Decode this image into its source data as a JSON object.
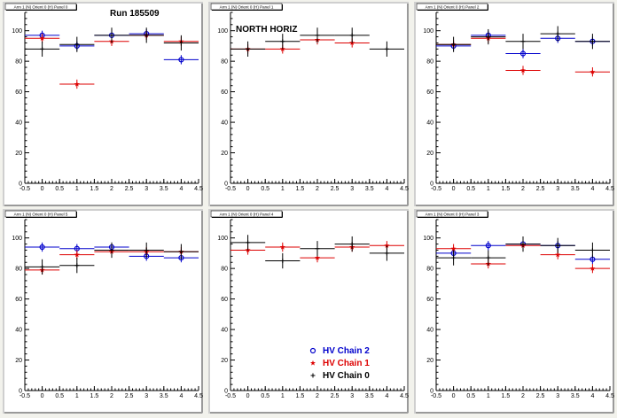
{
  "canvas": {
    "background": "#f2f2ec",
    "pad_color": "#ffffff",
    "frame_color": "#cfcfcf"
  },
  "series_styles": {
    "HV Chain 2": {
      "color": "#0000cc",
      "marker": "open-circle"
    },
    "HV Chain 1": {
      "color": "#dd0000",
      "marker": "star"
    },
    "HV Chain 0": {
      "color": "#000000",
      "marker": "cross"
    }
  },
  "legend": {
    "panel_index": 4,
    "entries": [
      {
        "name": "HV Chain 2",
        "color": "#0000cc",
        "marker": "open-circle"
      },
      {
        "name": "HV Chain 1",
        "color": "#dd0000",
        "marker": "star"
      },
      {
        "name": "HV Chain 0",
        "color": "#000000",
        "marker": "cross"
      }
    ]
  },
  "chart_data": [
    {
      "type": "scatter",
      "title": "Arm 1 (N) Orient 0 (H) Panel 0",
      "annotation": "Run 185509",
      "xlim": [
        -0.5,
        4.5
      ],
      "ylim": [
        0,
        112
      ],
      "xticks": [
        "-0.5",
        "0",
        "0.5",
        "1",
        "1.5",
        "2",
        "2.5",
        "3",
        "3.5",
        "4",
        "4.5"
      ],
      "yticks": [
        "0",
        "20",
        "40",
        "60",
        "80",
        "100"
      ],
      "series": [
        {
          "name": "HV Chain 2",
          "x": [
            0,
            1,
            2,
            3,
            4
          ],
          "y": [
            97,
            90,
            97,
            98,
            81
          ],
          "xerr": 0.5,
          "yerr": 3
        },
        {
          "name": "HV Chain 1",
          "x": [
            0,
            1,
            2,
            3,
            4
          ],
          "y": [
            95,
            65,
            93,
            97,
            93
          ],
          "xerr": 0.5,
          "yerr": 3
        },
        {
          "name": "HV Chain 0",
          "x": [
            0,
            1,
            2,
            3,
            4
          ],
          "y": [
            88,
            91,
            97,
            97,
            92
          ],
          "xerr": 0.5,
          "yerr": 5
        }
      ]
    },
    {
      "type": "scatter",
      "title": "Arm 1 (N) Orient 0 (H) Panel 1",
      "annotation": "NORTH HORIZ",
      "xlim": [
        -0.5,
        4.5
      ],
      "ylim": [
        0,
        112
      ],
      "xticks": [
        "-0.5",
        "0",
        "0.5",
        "1",
        "1.5",
        "2",
        "2.5",
        "3",
        "3.5",
        "4",
        "4.5"
      ],
      "yticks": [
        "0",
        "20",
        "40",
        "60",
        "80",
        "100"
      ],
      "series": [
        {
          "name": "HV Chain 1",
          "x": [
            0,
            1,
            2,
            3
          ],
          "y": [
            88,
            88,
            94,
            92
          ],
          "xerr": 0.5,
          "yerr": 3
        },
        {
          "name": "HV Chain 0",
          "x": [
            0,
            1,
            2,
            3,
            4
          ],
          "y": [
            88,
            93,
            97,
            97,
            88
          ],
          "xerr": 0.5,
          "yerr": 5
        }
      ]
    },
    {
      "type": "scatter",
      "title": "Arm 1 (N) Orient 0 (H) Panel 2",
      "annotation": "",
      "xlim": [
        -0.5,
        4.5
      ],
      "ylim": [
        0,
        112
      ],
      "xticks": [
        "-0.5",
        "0",
        "0.5",
        "1",
        "1.5",
        "2",
        "2.5",
        "3",
        "3.5",
        "4",
        "4.5"
      ],
      "yticks": [
        "0",
        "20",
        "40",
        "60",
        "80",
        "100"
      ],
      "series": [
        {
          "name": "HV Chain 2",
          "x": [
            0,
            1,
            2,
            3,
            4
          ],
          "y": [
            90,
            97,
            85,
            95,
            93
          ],
          "xerr": 0.5,
          "yerr": 3
        },
        {
          "name": "HV Chain 1",
          "x": [
            0,
            1,
            2,
            4
          ],
          "y": [
            91,
            95,
            74,
            73
          ],
          "xerr": 0.5,
          "yerr": 3
        },
        {
          "name": "HV Chain 0",
          "x": [
            0,
            1,
            2,
            3,
            4
          ],
          "y": [
            91,
            96,
            93,
            98,
            93
          ],
          "xerr": 0.5,
          "yerr": 5
        }
      ]
    },
    {
      "type": "scatter",
      "title": "Arm 1 (N) Orient 0 (H) Panel 5",
      "annotation": "",
      "xlim": [
        -0.5,
        4.5
      ],
      "ylim": [
        0,
        112
      ],
      "xticks": [
        "-0.5",
        "0",
        "0.5",
        "1",
        "1.5",
        "2",
        "2.5",
        "3",
        "3.5",
        "4",
        "4.5"
      ],
      "yticks": [
        "0",
        "20",
        "40",
        "60",
        "80",
        "100"
      ],
      "series": [
        {
          "name": "HV Chain 2",
          "x": [
            0,
            1,
            2,
            3,
            4
          ],
          "y": [
            94,
            93,
            94,
            88,
            87
          ],
          "xerr": 0.5,
          "yerr": 3
        },
        {
          "name": "HV Chain 1",
          "x": [
            0,
            1,
            2,
            3,
            4
          ],
          "y": [
            79,
            89,
            91,
            91,
            91
          ],
          "xerr": 0.5,
          "yerr": 3
        },
        {
          "name": "HV Chain 0",
          "x": [
            0,
            1,
            2,
            3,
            4
          ],
          "y": [
            81,
            82,
            92,
            92,
            91
          ],
          "xerr": 0.5,
          "yerr": 5
        }
      ]
    },
    {
      "type": "scatter",
      "title": "Arm 1 (N) Orient 0 (H) Panel 4",
      "annotation": "",
      "xlim": [
        -0.5,
        4.5
      ],
      "ylim": [
        0,
        112
      ],
      "xticks": [
        "-0.5",
        "0",
        "0.5",
        "1",
        "1.5",
        "2",
        "2.5",
        "3",
        "3.5",
        "4",
        "4.5"
      ],
      "yticks": [
        "0",
        "20",
        "40",
        "60",
        "80",
        "100"
      ],
      "series": [
        {
          "name": "HV Chain 1",
          "x": [
            0,
            1,
            2,
            3,
            4
          ],
          "y": [
            92,
            94,
            87,
            94,
            95
          ],
          "xerr": 0.5,
          "yerr": 3
        },
        {
          "name": "HV Chain 0",
          "x": [
            0,
            1,
            2,
            3,
            4
          ],
          "y": [
            97,
            85,
            93,
            96,
            90
          ],
          "xerr": 0.5,
          "yerr": 5
        }
      ]
    },
    {
      "type": "scatter",
      "title": "Arm 1 (N) Orient 0 (H) Panel 3",
      "annotation": "",
      "xlim": [
        -0.5,
        4.5
      ],
      "ylim": [
        0,
        112
      ],
      "xticks": [
        "-0.5",
        "0",
        "0.5",
        "1",
        "1.5",
        "2",
        "2.5",
        "3",
        "3.5",
        "4",
        "4.5"
      ],
      "yticks": [
        "0",
        "20",
        "40",
        "60",
        "80",
        "100"
      ],
      "series": [
        {
          "name": "HV Chain 2",
          "x": [
            0,
            1,
            2,
            3,
            4
          ],
          "y": [
            90,
            95,
            96,
            95,
            86
          ],
          "xerr": 0.5,
          "yerr": 3
        },
        {
          "name": "HV Chain 1",
          "x": [
            0,
            1,
            2,
            3,
            4
          ],
          "y": [
            93,
            83,
            95,
            89,
            80
          ],
          "xerr": 0.5,
          "yerr": 3
        },
        {
          "name": "HV Chain 0",
          "x": [
            0,
            1,
            2,
            3,
            4
          ],
          "y": [
            87,
            87,
            96,
            95,
            92
          ],
          "xerr": 0.5,
          "yerr": 5
        }
      ]
    }
  ]
}
